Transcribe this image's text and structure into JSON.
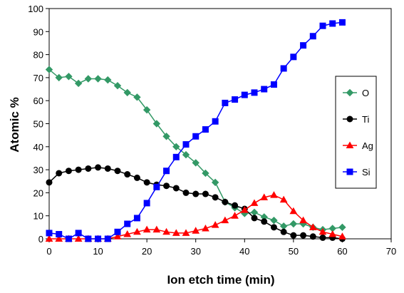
{
  "chart_data": {
    "type": "line",
    "title": "",
    "xlabel": "Ion etch time (min)",
    "ylabel": "Atomic %",
    "xlim": [
      0,
      70
    ],
    "ylim": [
      0,
      100
    ],
    "xticks": [
      0,
      10,
      20,
      30,
      40,
      50,
      60,
      70
    ],
    "yticks": [
      0,
      10,
      20,
      30,
      40,
      50,
      60,
      70,
      80,
      90,
      100
    ],
    "grid": false,
    "legend_position": "right",
    "x": [
      0,
      2,
      4,
      6,
      8,
      10,
      12,
      14,
      16,
      18,
      20,
      22,
      24,
      26,
      28,
      30,
      32,
      34,
      36,
      38,
      40,
      42,
      44,
      46,
      48,
      50,
      52,
      54,
      56,
      58,
      60
    ],
    "series": [
      {
        "name": "O",
        "color": "#339966",
        "marker": "diamond",
        "values": [
          73.5,
          70,
          70.5,
          67.5,
          69.5,
          69.5,
          69,
          66.5,
          63.5,
          61.5,
          56,
          50,
          44.5,
          40,
          36.5,
          33,
          28.5,
          24.5,
          16,
          13.5,
          11,
          11.5,
          9.5,
          8,
          5.5,
          6.5,
          6.5,
          5,
          4,
          4.5,
          5
        ]
      },
      {
        "name": "Ti",
        "color": "#000000",
        "marker": "circle",
        "values": [
          24.5,
          28.5,
          29.5,
          30,
          30.5,
          31,
          30.5,
          29.5,
          28,
          26.5,
          24.5,
          23.5,
          23,
          22,
          20,
          19.5,
          19.5,
          18,
          16,
          14.5,
          13,
          9,
          7.5,
          5,
          3,
          1.5,
          1.5,
          1,
          0.5,
          0.5,
          0
        ]
      },
      {
        "name": "Ag",
        "color": "#ff0000",
        "marker": "triangle",
        "values": [
          0,
          0,
          0,
          0,
          0,
          0,
          0,
          1,
          2,
          3,
          4,
          4,
          3,
          2.5,
          2.5,
          3.5,
          4.5,
          6,
          8,
          10,
          12.5,
          15.5,
          18,
          19,
          17,
          12,
          8,
          5,
          3,
          2,
          1
        ]
      },
      {
        "name": "Si",
        "color": "#0000ff",
        "marker": "square",
        "values": [
          2.5,
          2,
          0,
          2.5,
          0,
          0,
          0,
          3,
          6.5,
          9,
          15.5,
          22.5,
          29.5,
          35.5,
          41,
          44.5,
          47.5,
          51,
          59,
          60.5,
          62.5,
          63.5,
          65,
          67,
          74,
          79,
          84,
          88,
          92.5,
          93.5,
          94
        ]
      }
    ]
  }
}
